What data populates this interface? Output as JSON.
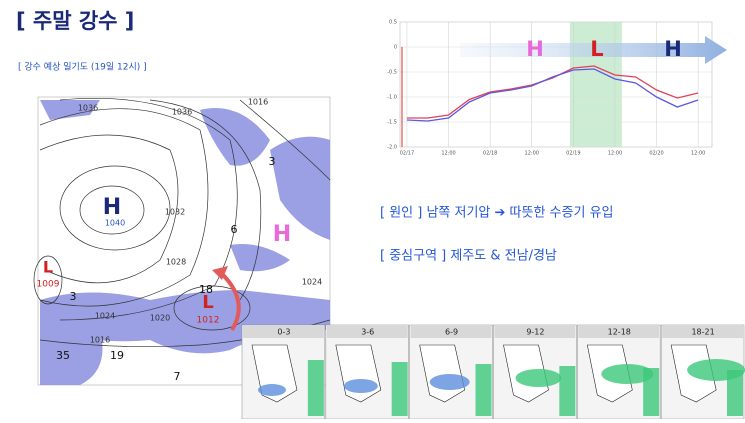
{
  "title": "[ 주말 강수 ]",
  "subtitle": "[ 강수 예상 일기도 (19일 12시) ]",
  "weather_map": {
    "labels": [
      "H",
      "1040",
      "H",
      "L",
      "1009",
      "L",
      "1012",
      "1036",
      "1036",
      "1032",
      "1028",
      "1024",
      "1024",
      "1020",
      "1016",
      "1016",
      "18",
      "6",
      "3",
      "3",
      "35",
      "19",
      "7"
    ]
  },
  "trend_chart": {
    "type": "line",
    "x": [
      0,
      6,
      12,
      18,
      24,
      30,
      36,
      42,
      48,
      54,
      60,
      66,
      72,
      78,
      84
    ],
    "series": [
      {
        "color": "#e0405a",
        "values": [
          -1.42,
          -1.42,
          -1.36,
          -1.05,
          -0.9,
          -0.84,
          -0.76,
          -0.62,
          -0.42,
          -0.38,
          -0.56,
          -0.6,
          -0.86,
          -1.02,
          -0.92
        ]
      },
      {
        "color": "#5a5ae0",
        "values": [
          -1.46,
          -1.48,
          -1.42,
          -1.1,
          -0.92,
          -0.86,
          -0.78,
          -0.6,
          -0.46,
          -0.44,
          -0.64,
          -0.72,
          -1.0,
          -1.2,
          -1.06
        ]
      }
    ],
    "xlim": [
      -2,
      88
    ],
    "ylim": [
      -2,
      0.5
    ],
    "yticks": [
      {
        "value": 0.5,
        "label": "0.5"
      },
      0,
      -0.5,
      {
        "value": -1,
        "label": "-1.0"
      },
      -1.5,
      {
        "value": -2,
        "label": "-2.0"
      }
    ],
    "xticks": [
      {
        "value": 0,
        "label": "02/17"
      },
      {
        "value": 12,
        "label": "12:00"
      },
      {
        "value": 24,
        "label": "02/18"
      },
      {
        "value": 36,
        "label": "12:00"
      },
      {
        "value": 48,
        "label": "02/19"
      },
      {
        "value": 60,
        "label": "12:00"
      },
      {
        "value": 72,
        "label": "02/20"
      },
      {
        "value": 84,
        "label": "12:00"
      }
    ],
    "highlight": [
      47,
      62
    ],
    "annotations": [
      "H",
      "L",
      "H"
    ]
  },
  "notes": [
    "[ 원인 ] 남쪽 저기압 ➔ 따뜻한 수증기 유입",
    "[ 중심구역 ] 제주도 & 전남/경남"
  ],
  "forecast_panels": [
    "0-3",
    "3-6",
    "6-9",
    "9-12",
    "12-18",
    "18-21"
  ]
}
